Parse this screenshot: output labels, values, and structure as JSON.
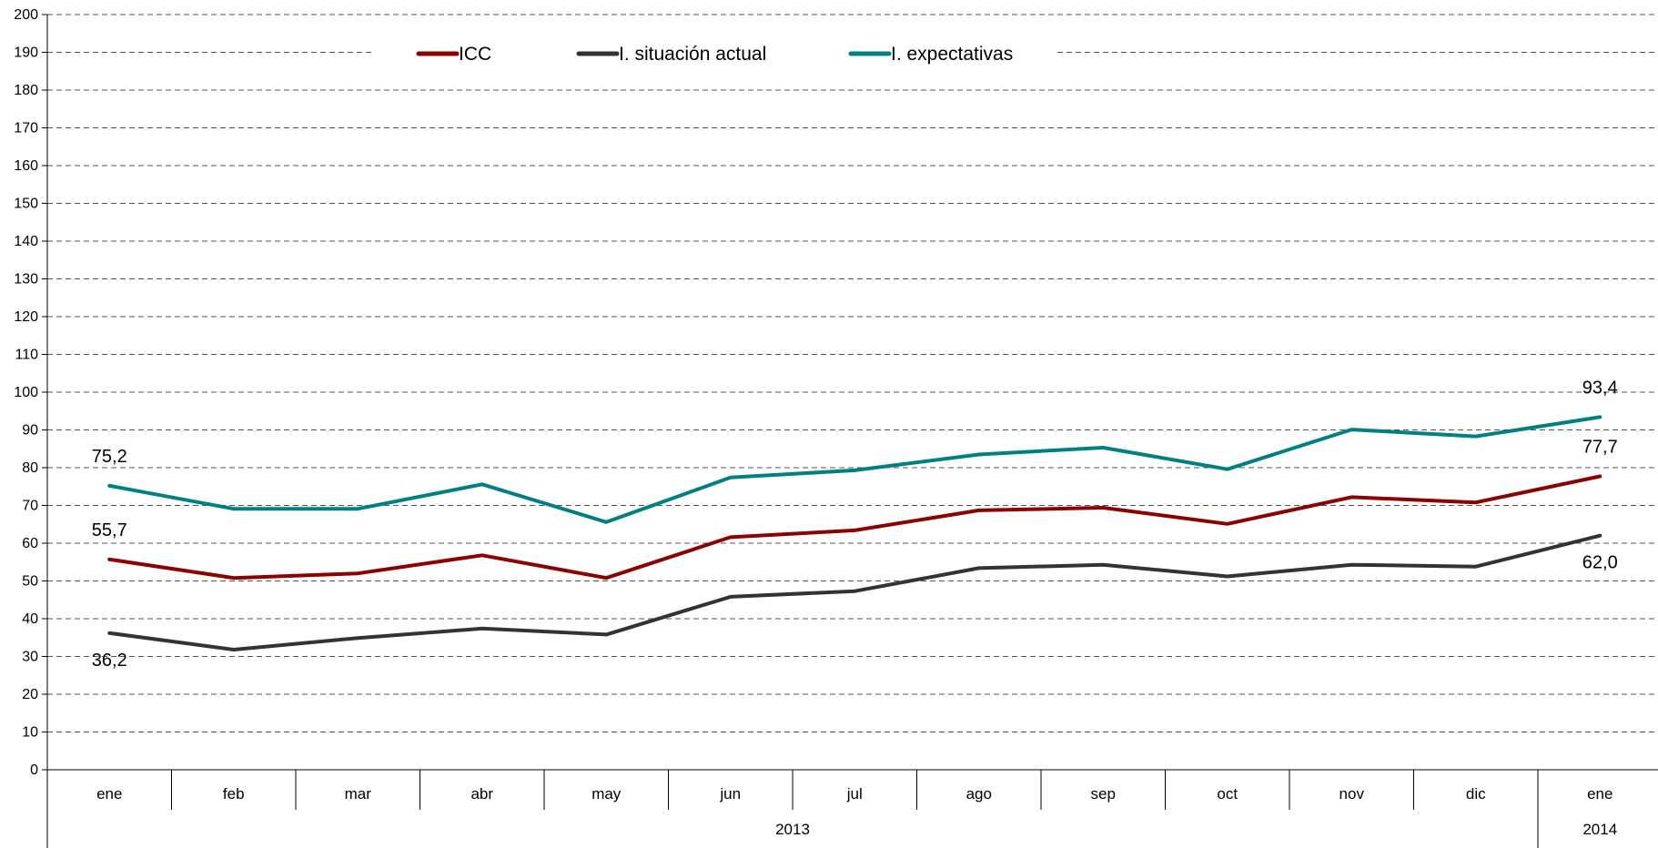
{
  "chart_data": {
    "type": "line",
    "title": "",
    "xlabel": "",
    "ylabel": "",
    "ylim": [
      0,
      200
    ],
    "yticks": [
      0,
      10,
      20,
      30,
      40,
      50,
      60,
      70,
      80,
      90,
      100,
      110,
      120,
      130,
      140,
      150,
      160,
      170,
      180,
      190,
      200
    ],
    "grid": "horizontal dashed",
    "legend_position": "top",
    "categories": [
      "ene",
      "feb",
      "mar",
      "abr",
      "may",
      "jun",
      "jul",
      "ago",
      "sep",
      "oct",
      "nov",
      "dic",
      "ene"
    ],
    "year_groups": [
      {
        "label": "2013",
        "count": 12
      },
      {
        "label": "2014",
        "count": 1
      }
    ],
    "series": [
      {
        "name": "ICC",
        "color": "#8b0000",
        "values": [
          55.7,
          50.8,
          52.0,
          56.8,
          50.8,
          61.6,
          63.4,
          68.7,
          69.4,
          65.1,
          72.2,
          70.8,
          77.7
        ],
        "labels": [
          {
            "index": 0,
            "text": "55,7",
            "pos": "above"
          },
          {
            "index": 12,
            "text": "77,7",
            "pos": "above"
          }
        ]
      },
      {
        "name": "I. situación actual",
        "color": "#333333",
        "values": [
          36.2,
          31.8,
          34.9,
          37.4,
          35.8,
          45.8,
          47.3,
          53.4,
          54.3,
          51.2,
          54.3,
          53.8,
          62.0
        ],
        "labels": [
          {
            "index": 0,
            "text": "36,2",
            "pos": "below"
          },
          {
            "index": 12,
            "text": "62,0",
            "pos": "below"
          }
        ]
      },
      {
        "name": "I. expectativas",
        "color": "#008080",
        "values": [
          75.2,
          69.1,
          69.1,
          75.6,
          65.6,
          77.4,
          79.3,
          83.5,
          85.3,
          79.6,
          90.1,
          88.3,
          93.4
        ],
        "labels": [
          {
            "index": 0,
            "text": "75,2",
            "pos": "above"
          },
          {
            "index": 12,
            "text": "93,4",
            "pos": "above"
          }
        ]
      }
    ]
  }
}
